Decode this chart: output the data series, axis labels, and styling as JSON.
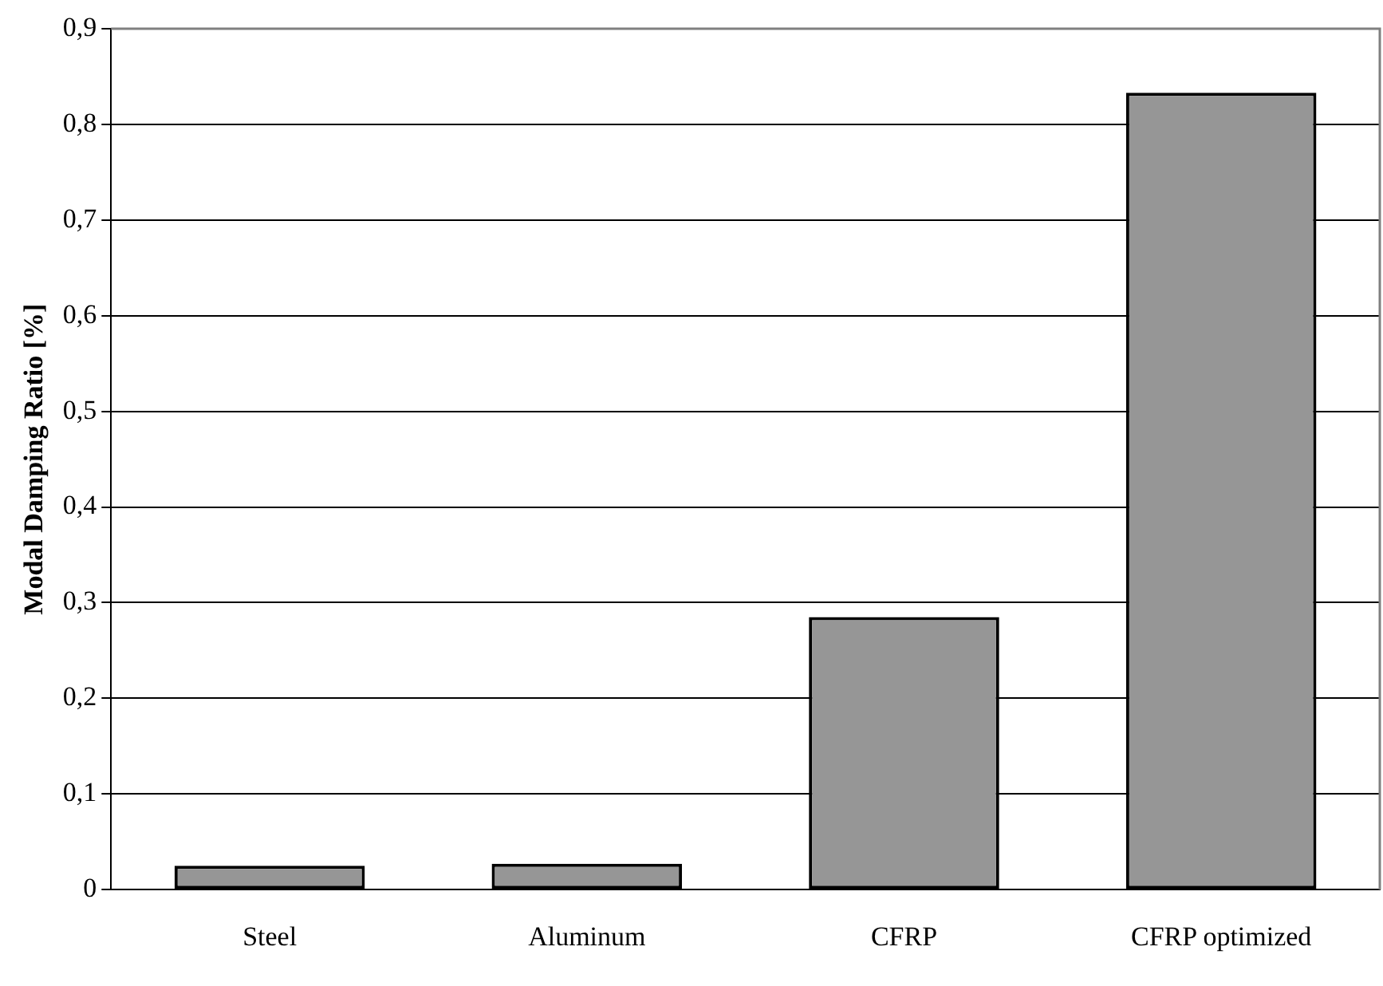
{
  "chart_data": {
    "type": "bar",
    "ylabel": "Modal Damping Ratio [%]",
    "categories": [
      "Steel",
      "Aluminum",
      "CFRP",
      "CFRP optimized"
    ],
    "values": [
      0.025,
      0.027,
      0.285,
      0.833
    ],
    "color": "#969696",
    "ylim": [
      0,
      0.9
    ],
    "yticks": [
      0,
      {
        "value": 0.1,
        "label": "0,1"
      },
      {
        "value": 0.2,
        "label": "0,2"
      },
      {
        "value": 0.3,
        "label": "0,3"
      },
      {
        "value": 0.4,
        "label": "0,4"
      },
      {
        "value": 0.5,
        "label": "0,5"
      },
      {
        "value": 0.6,
        "label": "0,6"
      },
      {
        "value": 0.7,
        "label": "0,7"
      },
      {
        "value": 0.8,
        "label": "0,8"
      },
      {
        "value": 0.9,
        "label": "0,9"
      }
    ],
    "grid": "y",
    "legend": false
  }
}
